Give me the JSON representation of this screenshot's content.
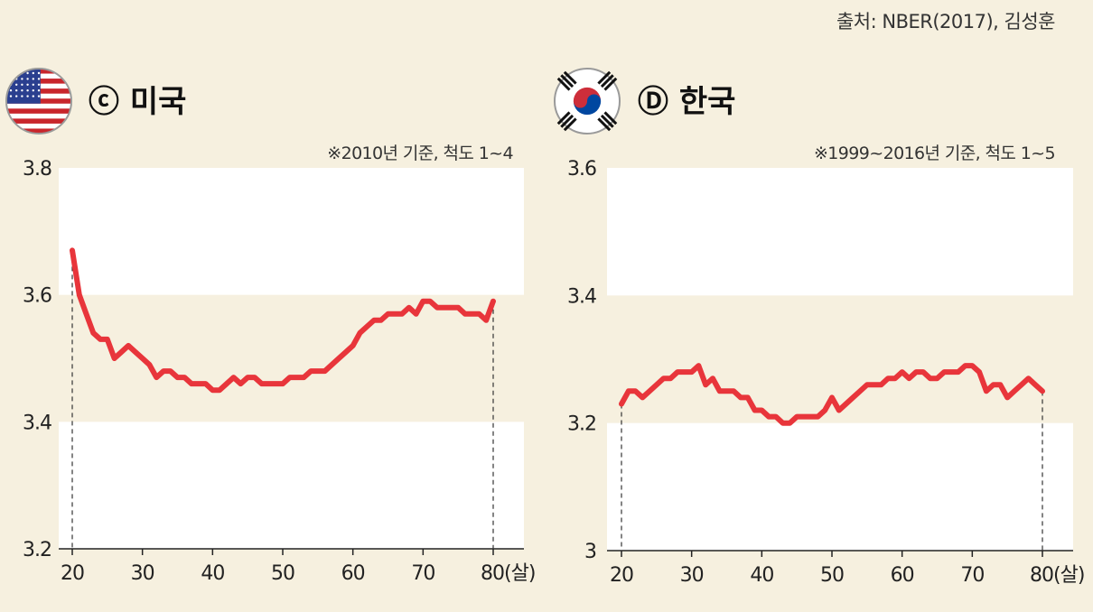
{
  "source": "출처: NBER(2017), 김성훈",
  "colors": {
    "background": "#f6f0df",
    "band": "#ffffff",
    "line": "#e8353b",
    "axis": "#222222"
  },
  "charts": [
    {
      "badge": "ⓒ",
      "country": "미국",
      "flag_icon": "usa-flag-icon",
      "note": "※2010년 기준, 척도 1~4",
      "x_unit": "(살)",
      "x_ticks": [
        20,
        30,
        40,
        50,
        60,
        70,
        80
      ],
      "y_ticks": [
        "3.2",
        "3.4",
        "3.6",
        "3.8"
      ]
    },
    {
      "badge": "Ⓓ",
      "country": "한국",
      "flag_icon": "korea-flag-icon",
      "note": "※1999~2016년 기준, 척도 1~5",
      "x_unit": "(살)",
      "x_ticks": [
        20,
        30,
        40,
        50,
        60,
        70,
        80
      ],
      "y_ticks": [
        "3",
        "3.2",
        "3.4",
        "3.6"
      ]
    }
  ],
  "chart_data": [
    {
      "type": "line",
      "xlabel": "",
      "ylabel": "",
      "xlim": [
        20,
        80
      ],
      "ylim": [
        3.2,
        3.8
      ],
      "grid": false,
      "bands": [
        [
          3.6,
          3.8
        ],
        [
          3.2,
          3.4
        ]
      ],
      "x": [
        20,
        21,
        22,
        23,
        24,
        25,
        26,
        27,
        28,
        29,
        30,
        31,
        32,
        33,
        34,
        35,
        36,
        37,
        38,
        39,
        40,
        41,
        42,
        43,
        44,
        45,
        46,
        47,
        48,
        49,
        50,
        51,
        52,
        53,
        54,
        55,
        56,
        57,
        58,
        59,
        60,
        61,
        62,
        63,
        64,
        65,
        66,
        67,
        68,
        69,
        70,
        71,
        72,
        73,
        74,
        75,
        76,
        77,
        78,
        79,
        80
      ],
      "values": [
        3.67,
        3.6,
        3.57,
        3.54,
        3.53,
        3.53,
        3.5,
        3.51,
        3.52,
        3.51,
        3.5,
        3.49,
        3.47,
        3.48,
        3.48,
        3.47,
        3.47,
        3.46,
        3.46,
        3.46,
        3.45,
        3.45,
        3.46,
        3.47,
        3.46,
        3.47,
        3.47,
        3.46,
        3.46,
        3.46,
        3.46,
        3.47,
        3.47,
        3.47,
        3.48,
        3.48,
        3.48,
        3.49,
        3.5,
        3.51,
        3.52,
        3.54,
        3.55,
        3.56,
        3.56,
        3.57,
        3.57,
        3.57,
        3.58,
        3.57,
        3.59,
        3.59,
        3.58,
        3.58,
        3.58,
        3.58,
        3.57,
        3.57,
        3.57,
        3.56,
        3.59
      ],
      "cutoffs": [
        20,
        80
      ]
    },
    {
      "type": "line",
      "xlabel": "",
      "ylabel": "",
      "xlim": [
        20,
        80
      ],
      "ylim": [
        3.0,
        3.6
      ],
      "grid": false,
      "bands": [
        [
          3.4,
          3.6
        ],
        [
          3.0,
          3.2
        ]
      ],
      "x": [
        20,
        21,
        22,
        23,
        24,
        25,
        26,
        27,
        28,
        29,
        30,
        31,
        32,
        33,
        34,
        35,
        36,
        37,
        38,
        39,
        40,
        41,
        42,
        43,
        44,
        45,
        46,
        47,
        48,
        49,
        50,
        51,
        52,
        53,
        54,
        55,
        56,
        57,
        58,
        59,
        60,
        61,
        62,
        63,
        64,
        65,
        66,
        67,
        68,
        69,
        70,
        71,
        72,
        73,
        74,
        75,
        76,
        77,
        78,
        79,
        80
      ],
      "values": [
        3.23,
        3.25,
        3.25,
        3.24,
        3.25,
        3.26,
        3.27,
        3.27,
        3.28,
        3.28,
        3.28,
        3.29,
        3.26,
        3.27,
        3.25,
        3.25,
        3.25,
        3.24,
        3.24,
        3.22,
        3.22,
        3.21,
        3.21,
        3.2,
        3.2,
        3.21,
        3.21,
        3.21,
        3.21,
        3.22,
        3.24,
        3.22,
        3.23,
        3.24,
        3.25,
        3.26,
        3.26,
        3.26,
        3.27,
        3.27,
        3.28,
        3.27,
        3.28,
        3.28,
        3.27,
        3.27,
        3.28,
        3.28,
        3.28,
        3.29,
        3.29,
        3.28,
        3.25,
        3.26,
        3.26,
        3.24,
        3.25,
        3.26,
        3.27,
        3.26,
        3.25
      ],
      "cutoffs": [
        20,
        80
      ]
    }
  ]
}
